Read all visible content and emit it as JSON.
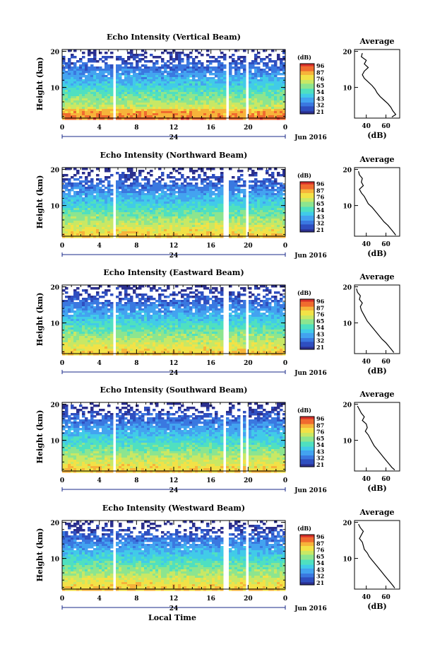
{
  "colors": {
    "scale": [
      "#2b2f8e",
      "#2f4fc0",
      "#3a78e0",
      "#43a3f0",
      "#41cbe8",
      "#4fe0c0",
      "#8ce58f",
      "#c8e865",
      "#f2e247",
      "#f7b33a",
      "#f06b2f",
      "#d7302a"
    ],
    "axis": "#000000",
    "date_axis": "#1a2a8a"
  },
  "chart_data": [
    {
      "type": "heatmap",
      "title": "Echo Intensity (Vertical Beam)",
      "ylabel": "Height (km)",
      "xlabel": "",
      "x_ticks": [
        "0",
        "4",
        "8",
        "12",
        "16",
        "20",
        "0"
      ],
      "xlim": [
        0,
        24
      ],
      "y_ticks": [
        "20",
        "10"
      ],
      "ylim": [
        1.5,
        20.5
      ],
      "date_ticks": [
        "24"
      ],
      "date_label": "Jun 2016",
      "colorbar": {
        "label": "(dB)",
        "ticks": [
          "96",
          "87",
          "76",
          "65",
          "54",
          "43",
          "32",
          "21"
        ],
        "range": [
          21,
          96
        ]
      },
      "gaps_hours": [
        [
          5.4,
          5.9
        ],
        [
          17.6,
          17.9
        ],
        [
          19.6,
          20.0
        ]
      ],
      "average": {
        "title": "Average",
        "xlabel": "(dB)",
        "x_ticks": [
          "40",
          "60"
        ],
        "y_ticks": [
          "20",
          "10"
        ],
        "height_km": [
          19.5,
          18.5,
          17.5,
          16.5,
          15.5,
          14.5,
          13.5,
          12.5,
          11.5,
          10.5,
          9.5,
          8.5,
          7.5,
          6.5,
          5.5,
          4.5,
          3.5,
          2.5,
          1.8
        ],
        "db": [
          36,
          35,
          40,
          38,
          42,
          38,
          36,
          38,
          42,
          46,
          49,
          51,
          54,
          58,
          62,
          65,
          67,
          70,
          66
        ]
      }
    },
    {
      "type": "heatmap",
      "title": "Echo Intensity (Northward Beam)",
      "ylabel": "Height (km)",
      "xlabel": "",
      "x_ticks": [
        "0",
        "4",
        "8",
        "12",
        "16",
        "20",
        "0"
      ],
      "xlim": [
        0,
        24
      ],
      "y_ticks": [
        "20",
        "10"
      ],
      "ylim": [
        1.5,
        20.5
      ],
      "date_ticks": [
        "24"
      ],
      "date_label": "Jun 2016",
      "colorbar": {
        "label": "(dB)",
        "ticks": [
          "96",
          "87",
          "76",
          "65",
          "54",
          "43",
          "32",
          "21"
        ],
        "range": [
          21,
          96
        ]
      },
      "gaps_hours": [
        [
          5.4,
          5.9
        ],
        [
          17.4,
          17.8
        ],
        [
          19.6,
          20.0
        ]
      ],
      "average": {
        "title": "Average",
        "xlabel": "(dB)",
        "x_ticks": [
          "40",
          "60"
        ],
        "y_ticks": [
          "20",
          "10"
        ],
        "height_km": [
          19.5,
          18.5,
          17.5,
          16.5,
          15.5,
          14.5,
          13.5,
          12.5,
          11.5,
          10.5,
          9.5,
          8.5,
          7.5,
          6.5,
          5.5,
          4.5,
          3.5,
          2.5,
          1.8
        ],
        "db": [
          32,
          33,
          36,
          35,
          37,
          33,
          35,
          38,
          40,
          42,
          46,
          49,
          52,
          55,
          58,
          62,
          65,
          68,
          70
        ]
      }
    },
    {
      "type": "heatmap",
      "title": "Echo Intensity (Eastward Beam)",
      "ylabel": "Height (km)",
      "xlabel": "",
      "x_ticks": [
        "0",
        "4",
        "8",
        "12",
        "16",
        "20",
        "0"
      ],
      "xlim": [
        0,
        24
      ],
      "y_ticks": [
        "20",
        "10"
      ],
      "ylim": [
        1.5,
        20.5
      ],
      "date_ticks": [
        "24"
      ],
      "date_label": "Jun 2016",
      "colorbar": {
        "label": "(dB)",
        "ticks": [
          "96",
          "87",
          "76",
          "65",
          "54",
          "43",
          "32",
          "21"
        ],
        "range": [
          21,
          96
        ]
      },
      "gaps_hours": [
        [
          5.4,
          5.9
        ],
        [
          17.4,
          17.8
        ],
        [
          19.6,
          19.9
        ]
      ],
      "average": {
        "title": "Average",
        "xlabel": "(dB)",
        "x_ticks": [
          "40",
          "60"
        ],
        "y_ticks": [
          "20",
          "10"
        ],
        "height_km": [
          19.5,
          18.5,
          17.5,
          16.5,
          15.5,
          14.5,
          13.5,
          12.5,
          11.5,
          10.5,
          9.5,
          8.5,
          7.5,
          6.5,
          5.5,
          4.5,
          3.5,
          2.5,
          1.8
        ],
        "db": [
          30,
          31,
          34,
          33,
          36,
          34,
          35,
          37,
          39,
          41,
          44,
          47,
          50,
          53,
          56,
          60,
          63,
          66,
          68
        ]
      }
    },
    {
      "type": "heatmap",
      "title": "Echo Intensity (Southward Beam)",
      "ylabel": "Height (km)",
      "xlabel": "",
      "x_ticks": [
        "0",
        "4",
        "8",
        "12",
        "16",
        "20",
        "0"
      ],
      "xlim": [
        0,
        24
      ],
      "y_ticks": [
        "20",
        "10"
      ],
      "ylim": [
        1.5,
        20.5
      ],
      "date_ticks": [
        "24"
      ],
      "date_label": "Jun 2016",
      "colorbar": {
        "label": "(dB)",
        "ticks": [
          "96",
          "87",
          "76",
          "65",
          "54",
          "43",
          "32",
          "21"
        ],
        "range": [
          21,
          96
        ]
      },
      "gaps_hours": [
        [
          5.4,
          5.9
        ],
        [
          17.4,
          17.7
        ],
        [
          19.1,
          19.3
        ],
        [
          19.6,
          19.9
        ]
      ],
      "average": {
        "title": "Average",
        "xlabel": "(dB)",
        "x_ticks": [
          "40",
          "60"
        ],
        "y_ticks": [
          "20",
          "10"
        ],
        "height_km": [
          19.5,
          18.5,
          17.5,
          16.5,
          15.5,
          14.5,
          13.5,
          12.5,
          11.5,
          10.5,
          9.5,
          8.5,
          7.5,
          6.5,
          5.5,
          4.5,
          3.5,
          2.5,
          1.8
        ],
        "db": [
          31,
          33,
          35,
          38,
          36,
          40,
          41,
          39,
          42,
          44,
          46,
          48,
          51,
          54,
          57,
          60,
          63,
          66,
          69
        ]
      }
    },
    {
      "type": "heatmap",
      "title": "Echo Intensity (Westward Beam)",
      "ylabel": "Height (km)",
      "xlabel": "Local Time",
      "x_ticks": [
        "0",
        "4",
        "8",
        "12",
        "16",
        "20",
        "0"
      ],
      "xlim": [
        0,
        24
      ],
      "y_ticks": [
        "20",
        "10"
      ],
      "ylim": [
        1.5,
        20.5
      ],
      "date_ticks": [
        "24"
      ],
      "date_label": "Jun 2016",
      "colorbar": {
        "label": "(dB)",
        "ticks": [
          "96",
          "87",
          "76",
          "65",
          "54",
          "43",
          "32",
          "21"
        ],
        "range": [
          21,
          96
        ]
      },
      "gaps_hours": [
        [
          5.4,
          5.9
        ],
        [
          17.4,
          17.8
        ],
        [
          19.6,
          19.9
        ]
      ],
      "average": {
        "title": "Average",
        "xlabel": "(dB)",
        "x_ticks": [
          "40",
          "60"
        ],
        "y_ticks": [
          "20",
          "10"
        ],
        "height_km": [
          19.5,
          18.5,
          17.5,
          16.5,
          15.5,
          14.5,
          13.5,
          12.5,
          11.5,
          10.5,
          9.5,
          8.5,
          7.5,
          6.5,
          5.5,
          4.5,
          3.5,
          2.5,
          1.8
        ],
        "db": [
          32,
          34,
          37,
          35,
          33,
          36,
          37,
          38,
          41,
          43,
          46,
          49,
          52,
          55,
          58,
          61,
          64,
          67,
          69
        ]
      }
    }
  ]
}
